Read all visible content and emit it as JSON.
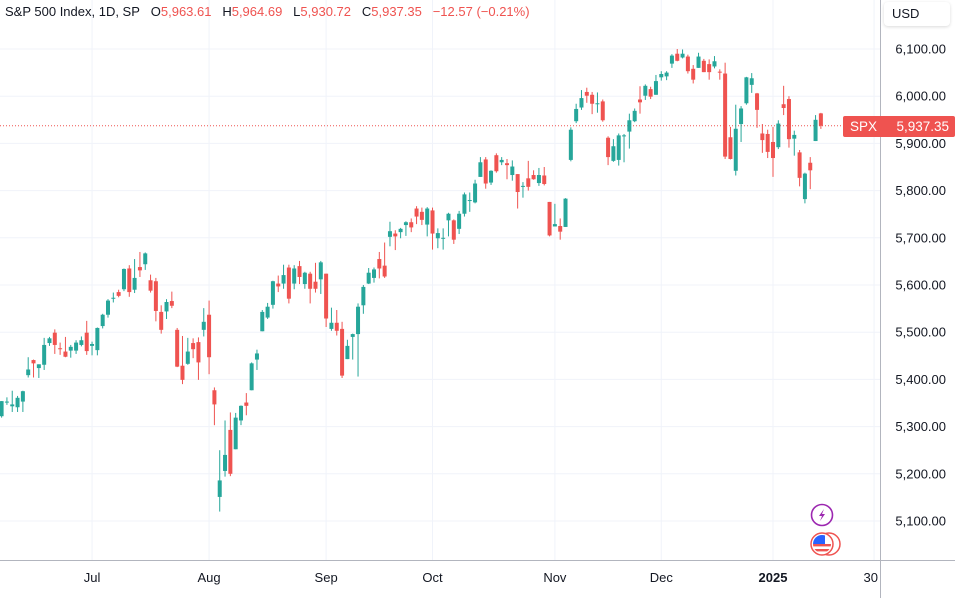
{
  "legend": {
    "title": "S&P 500 Index, 1D, SP",
    "open_label": "O",
    "open": "5,963.61",
    "high_label": "H",
    "high": "5,964.69",
    "low_label": "L",
    "low": "5,930.72",
    "close_label": "C",
    "close": "5,937.35",
    "change": "−12.57 (−0.21%)"
  },
  "currency": "USD",
  "last_price": {
    "symbol": "SPX",
    "value": "5,937.35"
  },
  "colors": {
    "up": "#26a69a",
    "down": "#ef5350",
    "grid": "#f0f3fa",
    "axis_text": "#131722"
  },
  "icons": [
    "lightning-icon",
    "us-flag-icon"
  ],
  "chart_data": {
    "type": "candlestick",
    "title": "S&P 500 Index, 1D, SP",
    "ylim": [
      5030,
      6160
    ],
    "y_ticks": [
      5100,
      5200,
      5300,
      5400,
      5500,
      5600,
      5700,
      5800,
      5900,
      6000,
      6100
    ],
    "y_tick_labels": [
      "5,100.00",
      "5,200.00",
      "5,300.00",
      "5,400.00",
      "5,500.00",
      "5,600.00",
      "5,700.00",
      "5,800.00",
      "5,900.00",
      "6,000.00",
      "6,100.00"
    ],
    "x_ticks": [
      {
        "label": "Jul",
        "date": "2024-07-01"
      },
      {
        "label": "Aug",
        "date": "2024-08-01"
      },
      {
        "label": "Sep",
        "date": "2024-09-03"
      },
      {
        "label": "Oct",
        "date": "2024-10-01"
      },
      {
        "label": "Nov",
        "date": "2024-11-01"
      },
      {
        "label": "Dec",
        "date": "2024-12-02"
      },
      {
        "label": "2025",
        "date": "2025-01-02",
        "bold": true
      },
      {
        "label": "30",
        "date": "2025-01-30"
      }
    ],
    "grid": true,
    "columns": [
      "date",
      "open",
      "high",
      "low",
      "close"
    ],
    "candles": [
      [
        "2024-06-05",
        5322,
        5354,
        5319,
        5354
      ],
      [
        "2024-06-06",
        5353,
        5362,
        5346,
        5353
      ],
      [
        "2024-06-07",
        5343,
        5376,
        5331,
        5347
      ],
      [
        "2024-06-10",
        5341,
        5365,
        5331,
        5361
      ],
      [
        "2024-06-11",
        5353,
        5376,
        5331,
        5375
      ],
      [
        "2024-06-12",
        5409,
        5447,
        5404,
        5421
      ],
      [
        "2024-06-13",
        5441,
        5442,
        5404,
        5434
      ],
      [
        "2024-06-14",
        5424,
        5432,
        5403,
        5432
      ],
      [
        "2024-06-17",
        5431,
        5488,
        5420,
        5473
      ],
      [
        "2024-06-18",
        5477,
        5490,
        5471,
        5487
      ],
      [
        "2024-06-20",
        5499,
        5506,
        5454,
        5473
      ],
      [
        "2024-06-21",
        5466,
        5478,
        5452,
        5465
      ],
      [
        "2024-06-24",
        5459,
        5490,
        5447,
        5448
      ],
      [
        "2024-06-25",
        5461,
        5473,
        5446,
        5469
      ],
      [
        "2024-06-26",
        5461,
        5483,
        5454,
        5478
      ],
      [
        "2024-06-27",
        5473,
        5491,
        5470,
        5483
      ],
      [
        "2024-06-28",
        5499,
        5524,
        5452,
        5460
      ],
      [
        "2024-07-01",
        5471,
        5480,
        5451,
        5475
      ],
      [
        "2024-07-02",
        5462,
        5510,
        5451,
        5509
      ],
      [
        "2024-07-03",
        5513,
        5539,
        5508,
        5537
      ],
      [
        "2024-07-05",
        5537,
        5570,
        5531,
        5567
      ],
      [
        "2024-07-08",
        5572,
        5584,
        5563,
        5573
      ],
      [
        "2024-07-09",
        5585,
        5590,
        5574,
        5577
      ],
      [
        "2024-07-10",
        5591,
        5635,
        5587,
        5634
      ],
      [
        "2024-07-11",
        5635,
        5642,
        5575,
        5585
      ],
      [
        "2024-07-12",
        5590,
        5655,
        5583,
        5615
      ],
      [
        "2024-07-15",
        5638,
        5670,
        5617,
        5631
      ],
      [
        "2024-07-16",
        5644,
        5669,
        5632,
        5667
      ],
      [
        "2024-07-17",
        5610,
        5622,
        5584,
        5588
      ],
      [
        "2024-07-18",
        5608,
        5615,
        5523,
        5545
      ],
      [
        "2024-07-19",
        5543,
        5557,
        5497,
        5505
      ],
      [
        "2024-07-22",
        5544,
        5570,
        5528,
        5564
      ],
      [
        "2024-07-23",
        5566,
        5586,
        5551,
        5556
      ],
      [
        "2024-07-24",
        5505,
        5509,
        5426,
        5427
      ],
      [
        "2024-07-25",
        5429,
        5492,
        5390,
        5399
      ],
      [
        "2024-07-26",
        5433,
        5488,
        5431,
        5459
      ],
      [
        "2024-07-29",
        5477,
        5487,
        5445,
        5464
      ],
      [
        "2024-07-30",
        5479,
        5489,
        5399,
        5436
      ],
      [
        "2024-07-31",
        5505,
        5551,
        5491,
        5522
      ],
      [
        "2024-08-01",
        5537,
        5567,
        5411,
        5447
      ],
      [
        "2024-08-02",
        5377,
        5383,
        5303,
        5347
      ],
      [
        "2024-08-05",
        5151,
        5250,
        5120,
        5186
      ],
      [
        "2024-08-06",
        5206,
        5313,
        5194,
        5240
      ],
      [
        "2024-08-07",
        5293,
        5330,
        5195,
        5200
      ],
      [
        "2024-08-08",
        5252,
        5329,
        5252,
        5319
      ],
      [
        "2024-08-09",
        5313,
        5345,
        5303,
        5344
      ],
      [
        "2024-08-12",
        5351,
        5371,
        5324,
        5344
      ],
      [
        "2024-08-13",
        5377,
        5436,
        5377,
        5434
      ],
      [
        "2024-08-14",
        5442,
        5463,
        5420,
        5455
      ],
      [
        "2024-08-15",
        5502,
        5547,
        5502,
        5543
      ],
      [
        "2024-08-16",
        5531,
        5562,
        5528,
        5554
      ],
      [
        "2024-08-19",
        5558,
        5609,
        5550,
        5608
      ],
      [
        "2024-08-20",
        5603,
        5620,
        5585,
        5597
      ],
      [
        "2024-08-21",
        5603,
        5643,
        5592,
        5621
      ],
      [
        "2024-08-22",
        5637,
        5643,
        5561,
        5571
      ],
      [
        "2024-08-23",
        5603,
        5642,
        5591,
        5635
      ],
      [
        "2024-08-26",
        5640,
        5651,
        5602,
        5617
      ],
      [
        "2024-08-27",
        5602,
        5628,
        5592,
        5626
      ],
      [
        "2024-08-28",
        5624,
        5628,
        5561,
        5592
      ],
      [
        "2024-08-29",
        5607,
        5647,
        5584,
        5592
      ],
      [
        "2024-08-30",
        5612,
        5651,
        5581,
        5648
      ],
      [
        "2024-09-03",
        5624,
        5624,
        5511,
        5529
      ],
      [
        "2024-09-04",
        5507,
        5552,
        5503,
        5520
      ],
      [
        "2024-09-05",
        5520,
        5547,
        5493,
        5503
      ],
      [
        "2024-09-06",
        5507,
        5522,
        5403,
        5408
      ],
      [
        "2024-09-09",
        5443,
        5484,
        5443,
        5471
      ],
      [
        "2024-09-10",
        5490,
        5497,
        5442,
        5496
      ],
      [
        "2024-09-11",
        5496,
        5561,
        5406,
        5554
      ],
      [
        "2024-09-12",
        5557,
        5600,
        5539,
        5596
      ],
      [
        "2024-09-13",
        5603,
        5636,
        5602,
        5626
      ],
      [
        "2024-09-16",
        5615,
        5637,
        5605,
        5633
      ],
      [
        "2024-09-17",
        5655,
        5670,
        5614,
        5635
      ],
      [
        "2024-09-18",
        5641,
        5690,
        5615,
        5618
      ],
      [
        "2024-09-19",
        5702,
        5734,
        5682,
        5714
      ],
      [
        "2024-09-20",
        5709,
        5716,
        5674,
        5703
      ],
      [
        "2024-09-23",
        5712,
        5721,
        5699,
        5719
      ],
      [
        "2024-09-24",
        5727,
        5735,
        5704,
        5733
      ],
      [
        "2024-09-25",
        5733,
        5741,
        5712,
        5722
      ],
      [
        "2024-09-26",
        5762,
        5767,
        5729,
        5745
      ],
      [
        "2024-09-27",
        5755,
        5764,
        5727,
        5738
      ],
      [
        "2024-09-30",
        5728,
        5765,
        5703,
        5762
      ],
      [
        "2024-10-01",
        5758,
        5764,
        5675,
        5709
      ],
      [
        "2024-10-02",
        5699,
        5720,
        5678,
        5710
      ],
      [
        "2024-10-03",
        5698,
        5720,
        5675,
        5700
      ],
      [
        "2024-10-04",
        5737,
        5753,
        5703,
        5751
      ],
      [
        "2024-10-07",
        5737,
        5739,
        5687,
        5696
      ],
      [
        "2024-10-08",
        5719,
        5757,
        5708,
        5751
      ],
      [
        "2024-10-09",
        5751,
        5796,
        5745,
        5792
      ],
      [
        "2024-10-10",
        5778,
        5796,
        5755,
        5780
      ],
      [
        "2024-10-11",
        5775,
        5823,
        5773,
        5815
      ],
      [
        "2024-10-14",
        5829,
        5871,
        5829,
        5860
      ],
      [
        "2024-10-15",
        5866,
        5871,
        5804,
        5815
      ],
      [
        "2024-10-16",
        5817,
        5843,
        5812,
        5842
      ],
      [
        "2024-10-17",
        5875,
        5879,
        5838,
        5841
      ],
      [
        "2024-10-18",
        5860,
        5871,
        5854,
        5865
      ],
      [
        "2024-10-21",
        5858,
        5867,
        5824,
        5854
      ],
      [
        "2024-10-22",
        5833,
        5864,
        5821,
        5851
      ],
      [
        "2024-10-23",
        5835,
        5835,
        5762,
        5797
      ],
      [
        "2024-10-24",
        5810,
        5818,
        5785,
        5810
      ],
      [
        "2024-10-25",
        5826,
        5863,
        5800,
        5808
      ],
      [
        "2024-10-28",
        5833,
        5843,
        5823,
        5824
      ],
      [
        "2024-10-29",
        5816,
        5848,
        5810,
        5833
      ],
      [
        "2024-10-30",
        5832,
        5850,
        5811,
        5814
      ],
      [
        "2024-10-31",
        5776,
        5776,
        5703,
        5705
      ],
      [
        "2024-11-01",
        5724,
        5772,
        5724,
        5729
      ],
      [
        "2024-11-04",
        5725,
        5741,
        5696,
        5713
      ],
      [
        "2024-11-05",
        5723,
        5784,
        5723,
        5783
      ],
      [
        "2024-11-06",
        5865,
        5934,
        5862,
        5929
      ],
      [
        "2024-11-07",
        5947,
        5984,
        5943,
        5973
      ],
      [
        "2024-11-08",
        5976,
        6013,
        5971,
        5996
      ],
      [
        "2024-11-11",
        6009,
        6018,
        5986,
        6001
      ],
      [
        "2024-11-12",
        6003,
        6009,
        5962,
        5984
      ],
      [
        "2024-11-13",
        5985,
        6008,
        5965,
        5985
      ],
      [
        "2024-11-14",
        5989,
        5993,
        5946,
        5949
      ],
      [
        "2024-11-15",
        5912,
        5915,
        5854,
        5871
      ],
      [
        "2024-11-18",
        5863,
        5909,
        5861,
        5894
      ],
      [
        "2024-11-19",
        5865,
        5921,
        5853,
        5917
      ],
      [
        "2024-11-20",
        5917,
        5920,
        5860,
        5917
      ],
      [
        "2024-11-21",
        5925,
        5963,
        5889,
        5949
      ],
      [
        "2024-11-22",
        5947,
        5974,
        5945,
        5969
      ],
      [
        "2024-11-25",
        5993,
        6021,
        5963,
        5987
      ],
      [
        "2024-11-26",
        6001,
        6025,
        5992,
        6022
      ],
      [
        "2024-11-27",
        6015,
        6020,
        5994,
        5999
      ],
      [
        "2024-11-29",
        6003,
        6045,
        6003,
        6032
      ],
      [
        "2024-12-02",
        6040,
        6053,
        6033,
        6047
      ],
      [
        "2024-12-03",
        6042,
        6053,
        6034,
        6050
      ],
      [
        "2024-12-04",
        6069,
        6089,
        6060,
        6086
      ],
      [
        "2024-12-05",
        6090,
        6100,
        6074,
        6075
      ],
      [
        "2024-12-06",
        6082,
        6099,
        6080,
        6090
      ],
      [
        "2024-12-09",
        6084,
        6088,
        6048,
        6053
      ],
      [
        "2024-12-10",
        6058,
        6066,
        6027,
        6035
      ],
      [
        "2024-12-11",
        6060,
        6092,
        6060,
        6084
      ],
      [
        "2024-12-12",
        6075,
        6079,
        6051,
        6051
      ],
      [
        "2024-12-13",
        6068,
        6078,
        6035,
        6051
      ],
      [
        "2024-12-16",
        6063,
        6085,
        6059,
        6074
      ],
      [
        "2024-12-17",
        6052,
        6057,
        6035,
        6051
      ],
      [
        "2024-12-18",
        6048,
        6071,
        5867,
        5872
      ],
      [
        "2024-12-19",
        5913,
        5935,
        5866,
        5867
      ],
      [
        "2024-12-20",
        5842,
        5982,
        5832,
        5931
      ],
      [
        "2024-12-23",
        5941,
        5979,
        5903,
        5974
      ],
      [
        "2024-12-24",
        5985,
        6041,
        5982,
        6040
      ],
      [
        "2024-12-26",
        6024,
        6049,
        6007,
        6038
      ],
      [
        "2024-12-27",
        6006,
        6007,
        5933,
        5971
      ],
      [
        "2024-12-30",
        5921,
        5941,
        5880,
        5907
      ],
      [
        "2024-12-31",
        5920,
        5929,
        5869,
        5882
      ],
      [
        "2025-01-02",
        5903,
        5935,
        5829,
        5869
      ],
      [
        "2025-01-03",
        5892,
        5949,
        5888,
        5942
      ],
      [
        "2025-01-06",
        5983,
        6022,
        5960,
        5975
      ],
      [
        "2025-01-07",
        5994,
        6000,
        5891,
        5909
      ],
      [
        "2025-01-08",
        5910,
        5927,
        5874,
        5918
      ],
      [
        "2025-01-10",
        5881,
        5886,
        5809,
        5827
      ],
      [
        "2025-01-13",
        5782,
        5838,
        5773,
        5836
      ],
      [
        "2025-01-14",
        5859,
        5871,
        5803,
        5843
      ],
      [
        "2025-01-15",
        5905,
        5960,
        5905,
        5950
      ],
      [
        "2025-01-16",
        5963.61,
        5964.69,
        5930.72,
        5937.35
      ]
    ],
    "last_close": 5937.35
  }
}
